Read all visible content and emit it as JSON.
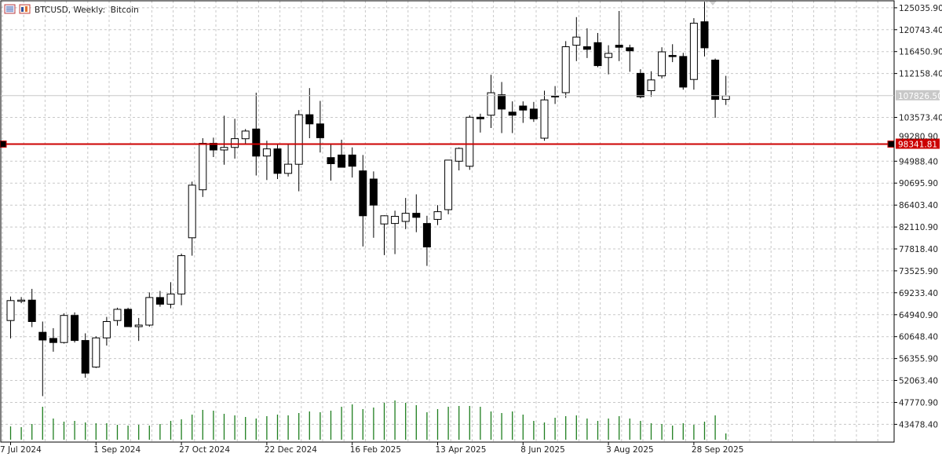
{
  "window": {
    "symbol": "BTCUSD",
    "timeframe": "Weekly",
    "description": "Bitcoin",
    "title_text": "BTCUSD, Weekly:  Bitcoin",
    "title_icons": [
      "indicators-list-icon",
      "object-list-icon"
    ]
  },
  "colors": {
    "background": "#ffffff",
    "grid": "#c8c8c8",
    "bull_body": "#ffffff",
    "bear_body": "#000000",
    "candle_outline": "#000000",
    "volume": "#1e7d1e",
    "hline": "#cc0000",
    "current_price_tag": "#c8c8c8"
  },
  "chart_data": {
    "type": "candlestick",
    "price_axis_labels": [
      "125035.90",
      "120743.40",
      "116450.90",
      "112158.40",
      "107826.50",
      "103573.40",
      "98341.81",
      "94988.40",
      "90695.90",
      "86403.40",
      "82110.90",
      "77818.40",
      "73525.90",
      "69233.40",
      "64940.90",
      "60648.40",
      "56355.90",
      "52063.40",
      "47770.90",
      "43478.40"
    ],
    "price_axis_ticks": [
      125035.9,
      120743.4,
      116450.9,
      112158.4,
      103573.4,
      94988.4,
      90695.9,
      86403.4,
      82110.9,
      77818.4,
      73525.9,
      69233.4,
      64940.9,
      60648.4,
      56355.9,
      52063.4,
      47770.9,
      43478.4
    ],
    "date_labels": [
      "7 Jul 2024",
      "1 Sep 2024",
      "27 Oct 2024",
      "22 Dec 2024",
      "16 Feb 2025",
      "13 Apr 2025",
      "8 Jun 2025",
      "3 Aug 2025",
      "28 Sep 2025"
    ],
    "date_label_candle_index": [
      0,
      8,
      16,
      24,
      32,
      40,
      48,
      56,
      64
    ],
    "current_price": 107826.5,
    "current_price_label": "107826.50",
    "horizontal_line": {
      "price": 98341.81,
      "label": "98341.81"
    },
    "partially_visible_label": "99280.90",
    "ylim": [
      40000,
      126400
    ],
    "candles": [
      {
        "o": 63800,
        "h": 68500,
        "l": 60300,
        "c": 67700
      },
      {
        "o": 67700,
        "h": 68400,
        "l": 67200,
        "c": 67800
      },
      {
        "o": 67800,
        "h": 70000,
        "l": 62500,
        "c": 63600
      },
      {
        "o": 61500,
        "h": 63600,
        "l": 49000,
        "c": 60000
      },
      {
        "o": 60300,
        "h": 62300,
        "l": 57700,
        "c": 59500
      },
      {
        "o": 59500,
        "h": 65200,
        "l": 59300,
        "c": 64800
      },
      {
        "o": 64800,
        "h": 65400,
        "l": 59500,
        "c": 59900
      },
      {
        "o": 59900,
        "h": 61300,
        "l": 52600,
        "c": 53500
      },
      {
        "o": 54700,
        "h": 60700,
        "l": 54500,
        "c": 60400
      },
      {
        "o": 60400,
        "h": 64500,
        "l": 58900,
        "c": 63600
      },
      {
        "o": 63800,
        "h": 66300,
        "l": 62800,
        "c": 66000
      },
      {
        "o": 66000,
        "h": 66300,
        "l": 62600,
        "c": 62600
      },
      {
        "o": 62600,
        "h": 64300,
        "l": 59800,
        "c": 62900
      },
      {
        "o": 62900,
        "h": 69300,
        "l": 62600,
        "c": 68300
      },
      {
        "o": 68300,
        "h": 69600,
        "l": 66500,
        "c": 67000
      },
      {
        "o": 67000,
        "h": 71300,
        "l": 66200,
        "c": 69000
      },
      {
        "o": 69000,
        "h": 76900,
        "l": 66800,
        "c": 76500
      },
      {
        "o": 80000,
        "h": 91000,
        "l": 76500,
        "c": 90300
      },
      {
        "o": 89400,
        "h": 99500,
        "l": 88000,
        "c": 98500
      },
      {
        "o": 98500,
        "h": 99600,
        "l": 95800,
        "c": 97200
      },
      {
        "o": 97200,
        "h": 103900,
        "l": 94300,
        "c": 97700
      },
      {
        "o": 97700,
        "h": 103300,
        "l": 95500,
        "c": 99400
      },
      {
        "o": 99400,
        "h": 101300,
        "l": 98400,
        "c": 100900
      },
      {
        "o": 101300,
        "h": 108400,
        "l": 92200,
        "c": 96000
      },
      {
        "o": 96000,
        "h": 99000,
        "l": 91300,
        "c": 97400
      },
      {
        "o": 97400,
        "h": 98500,
        "l": 91500,
        "c": 92600
      },
      {
        "o": 92600,
        "h": 98300,
        "l": 92000,
        "c": 94400
      },
      {
        "o": 94400,
        "h": 105000,
        "l": 89100,
        "c": 104100
      },
      {
        "o": 104100,
        "h": 109300,
        "l": 99500,
        "c": 102300
      },
      {
        "o": 102300,
        "h": 106800,
        "l": 96700,
        "c": 99600
      },
      {
        "o": 95700,
        "h": 98500,
        "l": 91200,
        "c": 94500
      },
      {
        "o": 96200,
        "h": 99200,
        "l": 94300,
        "c": 93800
      },
      {
        "o": 96200,
        "h": 97700,
        "l": 91800,
        "c": 94000
      },
      {
        "o": 93100,
        "h": 96200,
        "l": 78300,
        "c": 84300
      },
      {
        "o": 91500,
        "h": 93000,
        "l": 80000,
        "c": 86400
      },
      {
        "o": 82700,
        "h": 84400,
        "l": 76600,
        "c": 84300
      },
      {
        "o": 82800,
        "h": 85300,
        "l": 76800,
        "c": 84200
      },
      {
        "o": 83200,
        "h": 87800,
        "l": 81700,
        "c": 84800
      },
      {
        "o": 84800,
        "h": 88500,
        "l": 81100,
        "c": 84000
      },
      {
        "o": 82800,
        "h": 84300,
        "l": 74500,
        "c": 78200
      },
      {
        "o": 83600,
        "h": 86400,
        "l": 82500,
        "c": 85100
      },
      {
        "o": 85500,
        "h": 95200,
        "l": 84600,
        "c": 95200
      },
      {
        "o": 95000,
        "h": 97700,
        "l": 93200,
        "c": 97500
      },
      {
        "o": 94000,
        "h": 104000,
        "l": 93300,
        "c": 103600
      },
      {
        "o": 103600,
        "h": 104300,
        "l": 100600,
        "c": 103300
      },
      {
        "o": 104000,
        "h": 111900,
        "l": 101500,
        "c": 108400
      },
      {
        "o": 108000,
        "h": 110500,
        "l": 100500,
        "c": 105200
      },
      {
        "o": 104600,
        "h": 106700,
        "l": 100500,
        "c": 104000
      },
      {
        "o": 105800,
        "h": 106700,
        "l": 102500,
        "c": 105000
      },
      {
        "o": 105200,
        "h": 106600,
        "l": 102700,
        "c": 103300
      },
      {
        "o": 99500,
        "h": 108800,
        "l": 99000,
        "c": 107000
      },
      {
        "o": 107800,
        "h": 109700,
        "l": 106200,
        "c": 107600
      },
      {
        "o": 108400,
        "h": 118500,
        "l": 107400,
        "c": 117400
      },
      {
        "o": 117700,
        "h": 123200,
        "l": 114600,
        "c": 119300
      },
      {
        "o": 117400,
        "h": 121000,
        "l": 115200,
        "c": 116900
      },
      {
        "o": 118200,
        "h": 120100,
        "l": 113400,
        "c": 113700
      },
      {
        "o": 115300,
        "h": 117700,
        "l": 112000,
        "c": 116100
      },
      {
        "o": 117700,
        "h": 124400,
        "l": 114600,
        "c": 117300
      },
      {
        "o": 117200,
        "h": 117800,
        "l": 112500,
        "c": 116600
      },
      {
        "o": 112200,
        "h": 113000,
        "l": 107300,
        "c": 107600
      },
      {
        "o": 108800,
        "h": 112600,
        "l": 107600,
        "c": 110900
      },
      {
        "o": 111700,
        "h": 117300,
        "l": 111200,
        "c": 116400
      },
      {
        "o": 115700,
        "h": 117900,
        "l": 114400,
        "c": 115500
      },
      {
        "o": 115500,
        "h": 116200,
        "l": 109000,
        "c": 109500
      },
      {
        "o": 111000,
        "h": 123000,
        "l": 109000,
        "c": 122000
      },
      {
        "o": 122300,
        "h": 126200,
        "l": 115500,
        "c": 117200
      },
      {
        "o": 114800,
        "h": 115100,
        "l": 103500,
        "c": 107100
      },
      {
        "o": 107100,
        "h": 111700,
        "l": 106000,
        "c": 107800
      }
    ],
    "volume": [
      17,
      16,
      20,
      42,
      27,
      23,
      24,
      22,
      21,
      21,
      19,
      18,
      19,
      18,
      20,
      24,
      26,
      32,
      38,
      37,
      33,
      31,
      29,
      27,
      30,
      32,
      31,
      34,
      36,
      35,
      37,
      42,
      45,
      39,
      41,
      47,
      50,
      47,
      44,
      35,
      39,
      42,
      43,
      43,
      42,
      36,
      34,
      36,
      32,
      24,
      22,
      28,
      30,
      31,
      27,
      24,
      27,
      30,
      27,
      24,
      21,
      20,
      18,
      21,
      19,
      23,
      31,
      8
    ]
  }
}
